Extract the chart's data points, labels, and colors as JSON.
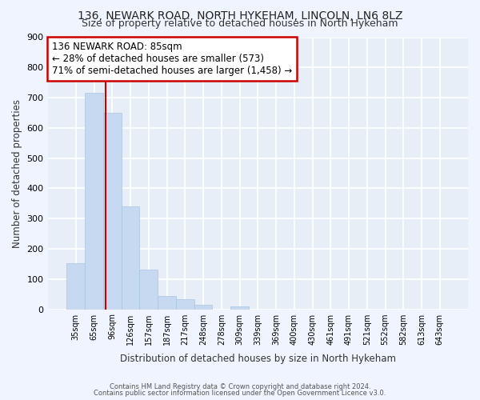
{
  "title1": "136, NEWARK ROAD, NORTH HYKEHAM, LINCOLN, LN6 8LZ",
  "title2": "Size of property relative to detached houses in North Hykeham",
  "xlabel": "Distribution of detached houses by size in North Hykeham",
  "ylabel": "Number of detached properties",
  "categories": [
    "35sqm",
    "65sqm",
    "96sqm",
    "126sqm",
    "157sqm",
    "187sqm",
    "217sqm",
    "248sqm",
    "278sqm",
    "309sqm",
    "339sqm",
    "369sqm",
    "400sqm",
    "430sqm",
    "461sqm",
    "491sqm",
    "521sqm",
    "552sqm",
    "582sqm",
    "613sqm",
    "643sqm"
  ],
  "values": [
    152,
    715,
    650,
    340,
    130,
    43,
    33,
    15,
    0,
    10,
    0,
    0,
    0,
    0,
    0,
    0,
    0,
    0,
    0,
    0,
    0
  ],
  "bar_color": "#c6d9f0",
  "bar_edgecolor": "#a8c4e0",
  "annotation_text_line1": "136 NEWARK ROAD: 85sqm",
  "annotation_text_line2": "← 28% of detached houses are smaller (573)",
  "annotation_text_line3": "71% of semi-detached houses are larger (1,458) →",
  "ylim": [
    0,
    900
  ],
  "yticks": [
    0,
    100,
    200,
    300,
    400,
    500,
    600,
    700,
    800,
    900
  ],
  "background_color": "#f0f4ff",
  "plot_bg_color": "#e8eef8",
  "grid_color": "#ffffff",
  "footer_text1": "Contains HM Land Registry data © Crown copyright and database right 2024.",
  "footer_text2": "Contains public sector information licensed under the Open Government Licence v3.0.",
  "annotation_box_facecolor": "#ffffff",
  "annotation_box_edgecolor": "#cc0000",
  "red_line_color": "#cc0000"
}
